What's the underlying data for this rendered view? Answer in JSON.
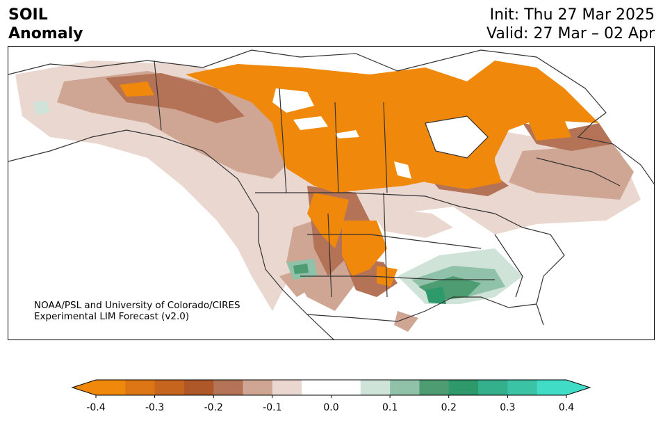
{
  "header": {
    "title_line1": "SOIL",
    "title_line2": "Anomaly",
    "init": "Init: Thu 27 Mar 2025",
    "valid": "Valid: 27 Mar – 02 Apr"
  },
  "credit": {
    "line1": "NOAA/PSL and University of Colorado/CIRES",
    "line2": "Experimental LIM Forecast (v2.0)"
  },
  "colorbar": {
    "colors": [
      "#f0880c",
      "#dc7614",
      "#c6661e",
      "#ae5728",
      "#b47356",
      "#cfa594",
      "#ead8d0",
      "#ffffff",
      "#ffffff",
      "#cfe3d8",
      "#8fc2a8",
      "#4e9c72",
      "#2e9a6c",
      "#34b08c",
      "#3bc3a6",
      "#40dcc6"
    ],
    "ticks": [
      "-0.4",
      "-0.3",
      "-0.2",
      "-0.1",
      "0.0",
      "0.1",
      "0.2",
      "0.3",
      "0.4"
    ]
  }
}
